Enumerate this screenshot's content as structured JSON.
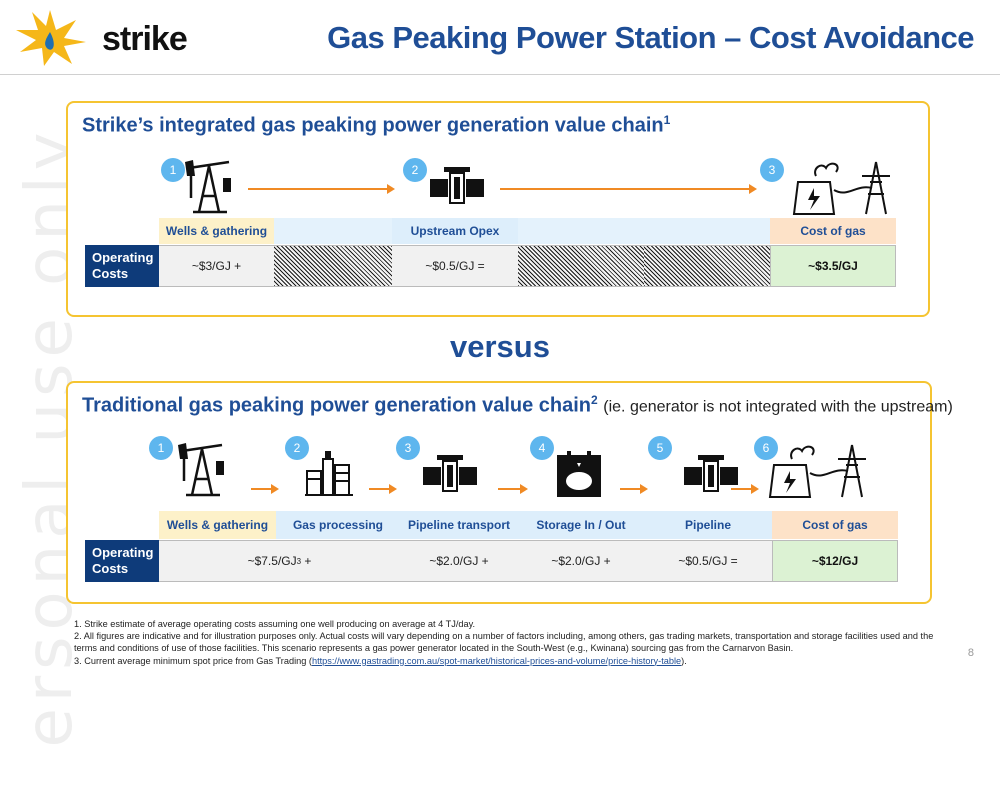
{
  "watermark": "ersonal use only",
  "logo": {
    "text": "strike"
  },
  "title": "Gas Peaking Power Station – Cost Avoidance",
  "panel1": {
    "title": "Strike’s integrated gas peaking power generation value chain",
    "title_sup": "1",
    "steps": [
      "1",
      "2",
      "3"
    ],
    "headers": [
      "Wells & gathering",
      "",
      "Upstream Opex",
      "",
      "",
      "Cost of gas"
    ],
    "row_label": "Operating Costs",
    "values": [
      "~$3/GJ +",
      "",
      "~$0.5/GJ =",
      "",
      "",
      "~$3.5/GJ"
    ]
  },
  "versus": "versus",
  "panel2": {
    "title": "Traditional gas peaking power generation value chain",
    "title_sup": "2",
    "title_sub": "(ie. generator is not integrated with the upstream)",
    "steps": [
      "1",
      "2",
      "3",
      "4",
      "5",
      "6"
    ],
    "headers": [
      "Wells & gathering",
      "Gas processing",
      "Pipeline transport",
      "Storage In / Out",
      "Pipeline",
      "Cost of gas"
    ],
    "row_label": "Operating Costs",
    "value_first": "~$7.5/GJ",
    "value_first_sup": "3",
    "value_first_suffix": " +",
    "values": [
      "~$2.0/GJ +",
      "~$2.0/GJ +",
      "~$0.5/GJ =",
      "~$12/GJ"
    ]
  },
  "footnotes": {
    "f1": "1. Strike estimate of average operating costs assuming one well producing on average at 4 TJ/day.",
    "f2": "2. All figures are indicative and for illustration purposes only.  Actual costs will vary depending on a number of factors including, among others, gas trading markets, transportation and storage facilities used and the terms and conditions of use of those facilities. This scenario represents a gas power generator located in the South-West (e.g., Kwinana) sourcing gas from the Carnarvon Basin.",
    "f3_prefix": "3. Current average minimum spot price from Gas Trading (",
    "f3_link": "https://www.gastrading.com.au/spot-market/historical-prices-and-volume/price-history-table",
    "f3_suffix": ")."
  },
  "page_number": "8",
  "colors": {
    "brand_blue": "#1f4e96",
    "panel_border": "#f5c431",
    "arrow": "#f08a24",
    "step_circle": "#5eb6ee",
    "label_navy": "#0e3b7a",
    "cost_green": "#dcf2d3"
  },
  "icons": [
    "strike-logo-icon",
    "pumpjack-icon",
    "pipeline-valve-icon",
    "power-station-icon",
    "gas-plant-icon",
    "storage-tank-icon"
  ]
}
